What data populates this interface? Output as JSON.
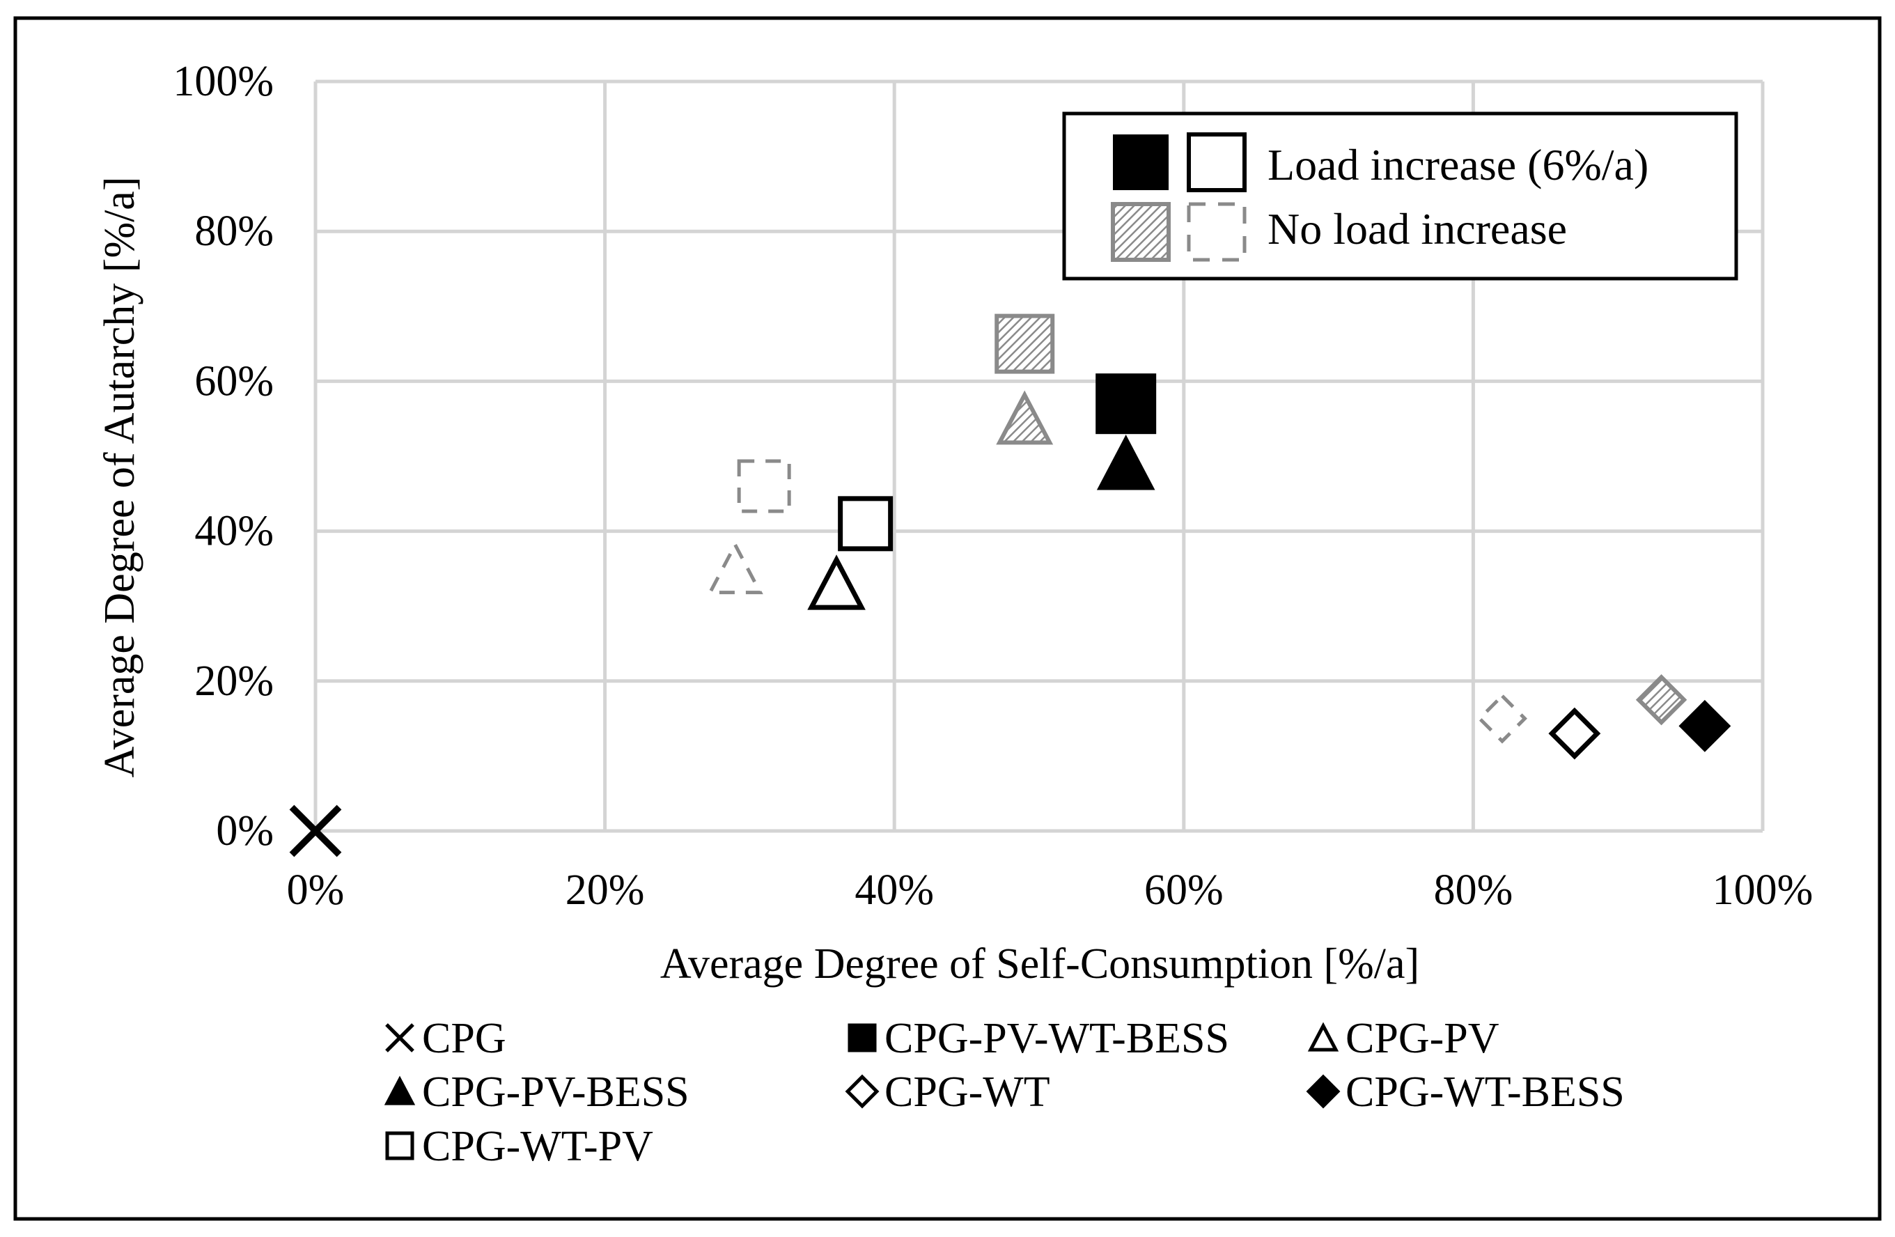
{
  "chart_data": {
    "type": "scatter",
    "xlabel": "Average Degree of Self-Consumption [%/a]",
    "ylabel": "Average Degree of Autarchy [%/a]",
    "xlim": [
      0,
      100
    ],
    "ylim": [
      0,
      100
    ],
    "grid": true,
    "x_ticks": [
      "0%",
      "20%",
      "40%",
      "60%",
      "80%",
      "100%"
    ],
    "y_ticks": [
      "0%",
      "20%",
      "40%",
      "60%",
      "80%",
      "100%"
    ],
    "inset_legend": {
      "placement": "top-right",
      "items": [
        {
          "label": "Load increase (6%/a)",
          "style": "load-increase"
        },
        {
          "label": "No load increase",
          "style": "no-load-increase"
        }
      ]
    },
    "series": [
      {
        "name": "CPG",
        "marker": "x",
        "points": [
          {
            "x": 0,
            "y": 0,
            "scenario": "load-increase"
          }
        ]
      },
      {
        "name": "CPG-PV-WT-BESS",
        "marker": "square-filled",
        "points": [
          {
            "x": 56,
            "y": 57,
            "scenario": "load-increase"
          },
          {
            "x": 49,
            "y": 65,
            "scenario": "no-load-increase"
          }
        ]
      },
      {
        "name": "CPG-PV",
        "marker": "triangle-open",
        "points": [
          {
            "x": 36,
            "y": 33,
            "scenario": "load-increase"
          },
          {
            "x": 29,
            "y": 35,
            "scenario": "no-load-increase"
          }
        ]
      },
      {
        "name": "CPG-PV-BESS",
        "marker": "triangle-filled",
        "points": [
          {
            "x": 56,
            "y": 49,
            "scenario": "load-increase"
          },
          {
            "x": 49,
            "y": 55,
            "scenario": "no-load-increase"
          }
        ]
      },
      {
        "name": "CPG-WT",
        "marker": "diamond-open",
        "points": [
          {
            "x": 87,
            "y": 13,
            "scenario": "load-increase"
          },
          {
            "x": 82,
            "y": 15,
            "scenario": "no-load-increase"
          }
        ]
      },
      {
        "name": "CPG-WT-BESS",
        "marker": "diamond-filled",
        "points": [
          {
            "x": 96,
            "y": 14,
            "scenario": "load-increase"
          },
          {
            "x": 93,
            "y": 17.5,
            "scenario": "no-load-increase"
          }
        ]
      },
      {
        "name": "CPG-WT-PV",
        "marker": "square-open",
        "points": [
          {
            "x": 38,
            "y": 41,
            "scenario": "load-increase"
          },
          {
            "x": 31,
            "y": 46,
            "scenario": "no-load-increase"
          }
        ]
      }
    ]
  }
}
